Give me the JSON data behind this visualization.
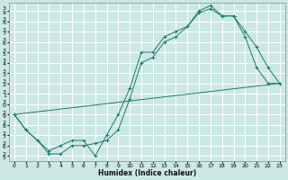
{
  "xlabel": "Humidex (Indice chaleur)",
  "bg_color": "#cce8e4",
  "grid_color": "#ffffff",
  "line_color": "#1a7a6e",
  "xlim": [
    -0.5,
    23.5
  ],
  "ylim": [
    24.5,
    39.8
  ],
  "yticks": [
    25,
    26,
    27,
    28,
    29,
    30,
    31,
    32,
    33,
    34,
    35,
    36,
    37,
    38,
    39
  ],
  "xticks": [
    0,
    1,
    2,
    3,
    4,
    5,
    6,
    7,
    8,
    9,
    10,
    11,
    12,
    13,
    14,
    15,
    16,
    17,
    18,
    19,
    20,
    21,
    22,
    23
  ],
  "series": [
    {
      "x": [
        0,
        1,
        2,
        3,
        4,
        5,
        6,
        7,
        8,
        9,
        10,
        11,
        12,
        13,
        14,
        15,
        16,
        17,
        18,
        19,
        20,
        21,
        22,
        23
      ],
      "y": [
        29.0,
        27.5,
        26.5,
        25.5,
        26.0,
        26.5,
        26.5,
        25.0,
        27.0,
        29.0,
        31.5,
        35.0,
        35.0,
        36.5,
        37.0,
        37.5,
        39.0,
        39.5,
        38.5,
        38.5,
        37.0,
        35.5,
        33.5,
        32.0
      ],
      "has_markers": true
    },
    {
      "x": [
        0,
        1,
        2,
        3,
        4,
        5,
        6,
        7,
        8,
        9,
        10,
        11,
        12,
        13,
        14,
        15,
        16,
        17,
        18,
        19,
        20,
        21,
        22,
        23
      ],
      "y": [
        29.0,
        27.5,
        26.5,
        25.2,
        25.2,
        26.0,
        26.0,
        26.2,
        26.5,
        27.5,
        30.5,
        34.0,
        34.5,
        36.0,
        36.5,
        37.5,
        38.8,
        39.2,
        38.5,
        38.5,
        36.5,
        33.5,
        32.0,
        32.0
      ],
      "has_markers": true
    },
    {
      "x": [
        0,
        23
      ],
      "y": [
        29.0,
        32.0
      ],
      "has_markers": false
    }
  ]
}
